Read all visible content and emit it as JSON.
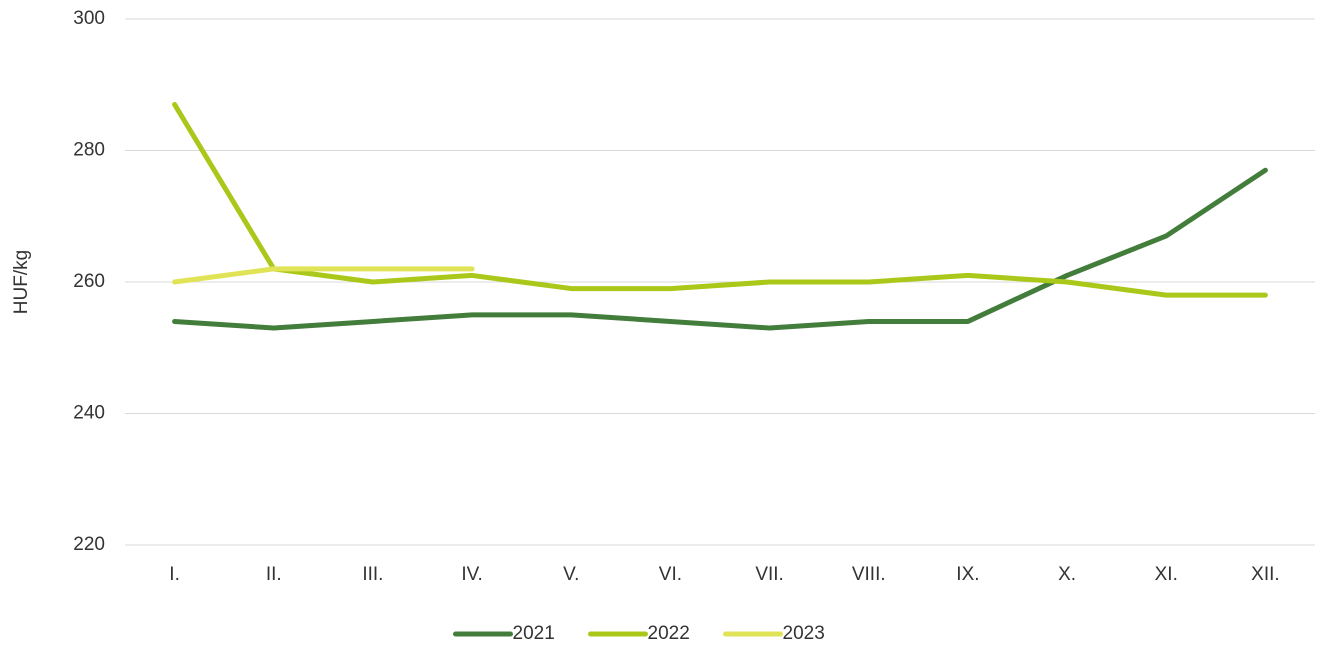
{
  "chart_data": {
    "type": "line",
    "ylabel": "HUF/kg",
    "categories": [
      "I.",
      "II.",
      "III.",
      "IV.",
      "V.",
      "VI.",
      "VII.",
      "VIII.",
      "IX.",
      "X.",
      "XI.",
      "XII."
    ],
    "series": [
      {
        "name": "2021",
        "color": "#437d3b",
        "values": [
          254,
          253,
          254,
          255,
          255,
          254,
          253,
          254,
          254,
          261,
          267,
          277
        ]
      },
      {
        "name": "2022",
        "color": "#a9c819",
        "values": [
          287,
          262,
          260,
          261,
          259,
          259,
          260,
          260,
          261,
          260,
          258,
          258
        ]
      },
      {
        "name": "2023",
        "color": "#e1e356",
        "values": [
          260,
          262,
          262,
          262,
          null,
          null,
          null,
          null,
          null,
          null,
          null,
          null
        ]
      }
    ],
    "ylim": [
      220,
      300
    ],
    "yticks": [
      220,
      240,
      260,
      280,
      300
    ],
    "grid": true,
    "legend": "bottom"
  }
}
